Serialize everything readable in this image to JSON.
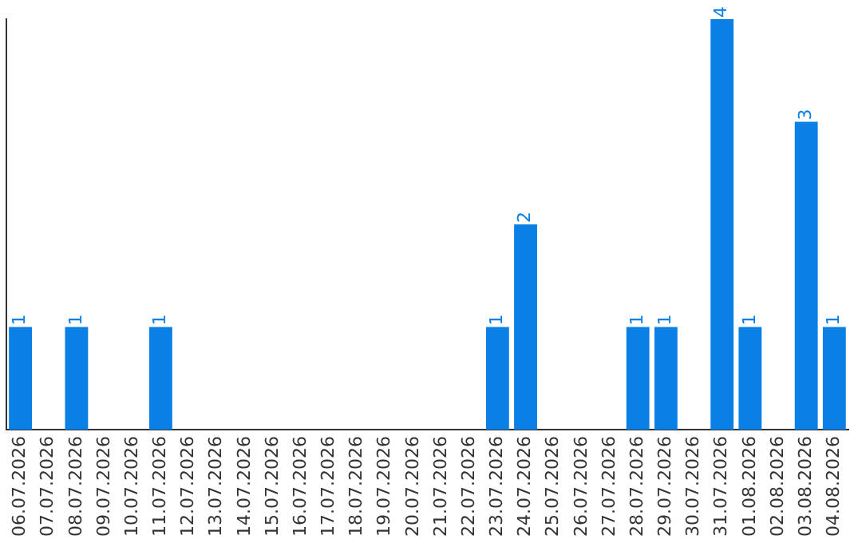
{
  "chart_data": {
    "type": "bar",
    "categories": [
      "06.07.2026",
      "07.07.2026",
      "08.07.2026",
      "09.07.2026",
      "10.07.2026",
      "11.07.2026",
      "12.07.2026",
      "13.07.2026",
      "14.07.2026",
      "15.07.2026",
      "16.07.2026",
      "17.07.2026",
      "18.07.2026",
      "19.07.2026",
      "20.07.2026",
      "21.07.2026",
      "22.07.2026",
      "23.07.2026",
      "24.07.2026",
      "25.07.2026",
      "26.07.2026",
      "27.07.2026",
      "28.07.2026",
      "29.07.2026",
      "30.07.2026",
      "31.07.2026",
      "01.08.2026",
      "02.08.2026",
      "03.08.2026",
      "04.08.2026"
    ],
    "values": [
      1,
      0,
      1,
      0,
      0,
      1,
      0,
      0,
      0,
      0,
      0,
      0,
      0,
      0,
      0,
      0,
      0,
      1,
      2,
      0,
      0,
      0,
      1,
      1,
      0,
      4,
      1,
      0,
      3,
      1
    ],
    "value_labels": [
      "1",
      null,
      "1",
      null,
      null,
      "1",
      null,
      null,
      null,
      null,
      null,
      null,
      null,
      null,
      null,
      null,
      null,
      "1",
      "2",
      null,
      null,
      null,
      "1",
      "1",
      null,
      "4",
      "1",
      null,
      "3",
      "1"
    ],
    "color": "#0a7fe6",
    "ylim": [
      0,
      4
    ],
    "grid": false,
    "legend": false,
    "tick_labels": "x"
  }
}
